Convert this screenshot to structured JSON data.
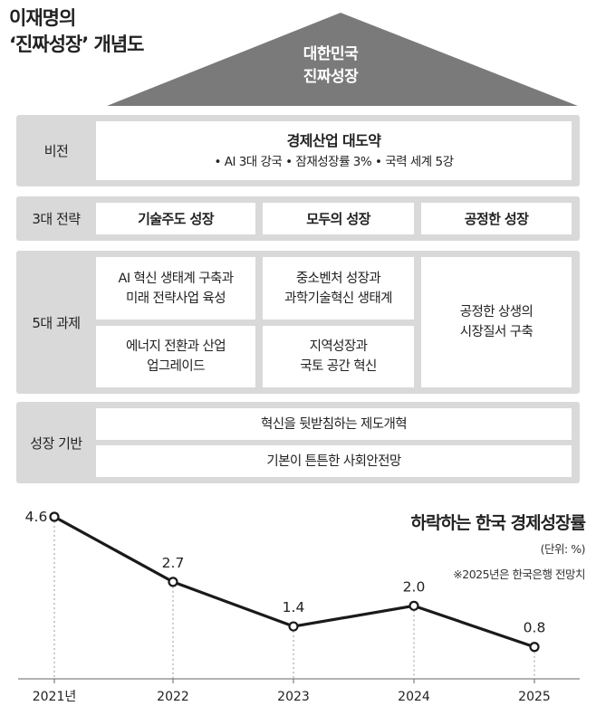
{
  "title": {
    "line1": "이재명의",
    "line2": "‘진짜성장’ 개념도"
  },
  "roof": {
    "line1": "대한민국",
    "line2": "진짜성장"
  },
  "vision": {
    "label": "비전",
    "main": "경제산업 대도약",
    "sub": "• AI 3대 강국 • 잠재성장률 3% • 국력 세계 5강"
  },
  "strategies": {
    "label": "3대 전략",
    "items": [
      "기술주도 성장",
      "모두의 성장",
      "공정한 성장"
    ]
  },
  "tasks": {
    "label": "5대 과제",
    "col1": [
      {
        "l1": "AI 혁신 생태계 구축과",
        "l2": "미래 전략사업 육성"
      },
      {
        "l1": "에너지 전환과 산업",
        "l2": "업그레이드"
      }
    ],
    "col2": [
      {
        "l1": "중소벤처 성장과",
        "l2": "과학기술혁신 생태계"
      },
      {
        "l1": "지역성장과",
        "l2": "국토 공간 혁신"
      }
    ],
    "col3": {
      "l1": "공정한 상생의",
      "l2": "시장질서 구축"
    }
  },
  "foundation": {
    "label": "성장 기반",
    "items": [
      "혁신을 뒷받침하는 제도개혁",
      "기본이 튼튼한 사회안전망"
    ]
  },
  "chart_data": {
    "type": "line",
    "title": "하락하는 한국 경제성장률",
    "unit": "(단위: %)",
    "note": "※2025년은 한국은행 전망치",
    "categories": [
      "2021년",
      "2022",
      "2023",
      "2024",
      "2025"
    ],
    "values": [
      4.6,
      2.7,
      1.4,
      2.0,
      0.8
    ],
    "value_labels": [
      "4.6",
      "2.7",
      "1.4",
      "2.0",
      "0.8"
    ],
    "ylim": [
      0,
      4.6
    ],
    "color": "#1a1a1a"
  },
  "colors": {
    "roof": "#7a7a7a",
    "panel": "#d9d9d9"
  }
}
